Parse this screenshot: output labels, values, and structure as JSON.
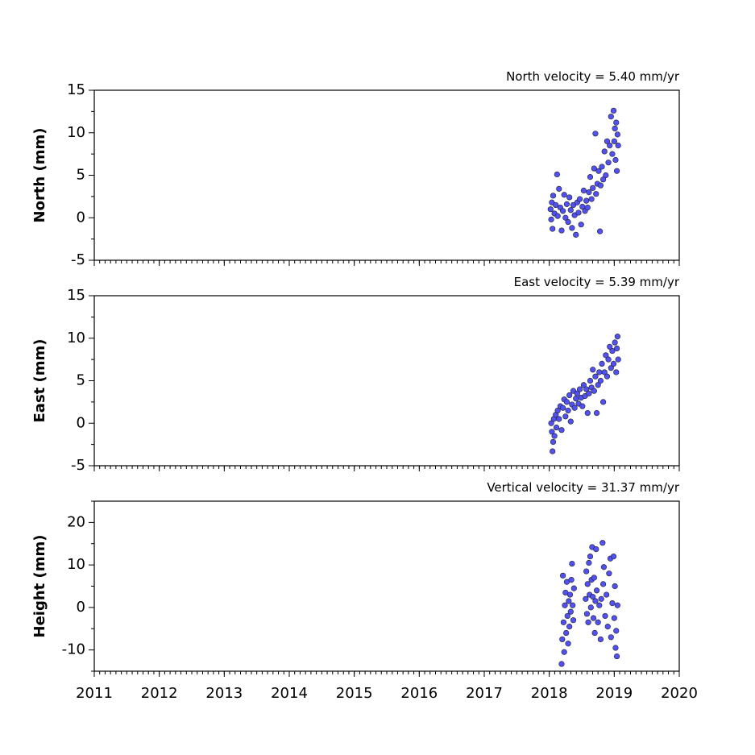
{
  "chart_data": [
    {
      "type": "scatter",
      "title": "North velocity = 5.40 mm/yr",
      "y_label": "North (mm)",
      "color": "#5050f5",
      "xlim": [
        2011,
        2020
      ],
      "xticks": [
        2011,
        2012,
        2013,
        2014,
        2015,
        2016,
        2017,
        2018,
        2019,
        2020
      ],
      "ylim": [
        -5,
        15
      ],
      "yticks": [
        -5,
        0,
        5,
        10,
        15
      ],
      "x": [
        2018.02,
        2018.03,
        2018.04,
        2018.05,
        2018.06,
        2018.08,
        2018.1,
        2018.12,
        2018.13,
        2018.15,
        2018.17,
        2018.19,
        2018.21,
        2018.23,
        2018.25,
        2018.27,
        2018.29,
        2018.31,
        2018.33,
        2018.35,
        2018.37,
        2018.39,
        2018.41,
        2018.43,
        2018.45,
        2018.47,
        2018.49,
        2018.51,
        2018.53,
        2018.55,
        2018.57,
        2018.59,
        2018.61,
        2018.63,
        2018.65,
        2018.67,
        2018.69,
        2018.71,
        2018.72,
        2018.74,
        2018.76,
        2018.78,
        2018.79,
        2018.81,
        2018.83,
        2018.85,
        2018.87,
        2018.89,
        2018.91,
        2018.93,
        2018.95,
        2018.97,
        2018.99,
        2019.0,
        2019.01,
        2019.02,
        2019.03,
        2019.04,
        2019.05,
        2019.06
      ],
      "values": [
        1.0,
        -0.2,
        1.8,
        -1.3,
        2.6,
        0.5,
        1.5,
        5.1,
        0.2,
        3.4,
        1.2,
        -1.5,
        0.8,
        2.7,
        0.0,
        1.6,
        -0.5,
        2.4,
        0.9,
        -1.2,
        1.5,
        0.3,
        -2.0,
        1.8,
        0.6,
        2.2,
        -0.8,
        1.3,
        3.2,
        0.8,
        2.0,
        1.2,
        3.0,
        4.8,
        2.2,
        3.5,
        5.8,
        9.9,
        2.8,
        4.0,
        5.5,
        -1.6,
        3.8,
        6.0,
        4.5,
        7.8,
        5.0,
        9.0,
        6.5,
        8.5,
        11.9,
        7.5,
        12.6,
        9.0,
        10.5,
        6.8,
        11.2,
        5.5,
        9.8,
        8.5
      ]
    },
    {
      "type": "scatter",
      "title": "East velocity = 5.39 mm/yr",
      "y_label": "East (mm)",
      "color": "#5050f5",
      "xlim": [
        2011,
        2020
      ],
      "xticks": [
        2011,
        2012,
        2013,
        2014,
        2015,
        2016,
        2017,
        2018,
        2019,
        2020
      ],
      "ylim": [
        -5,
        15
      ],
      "yticks": [
        -5,
        0,
        5,
        10,
        15
      ],
      "x": [
        2018.03,
        2018.04,
        2018.05,
        2018.06,
        2018.07,
        2018.08,
        2018.1,
        2018.11,
        2018.13,
        2018.15,
        2018.17,
        2018.19,
        2018.21,
        2018.23,
        2018.25,
        2018.27,
        2018.29,
        2018.31,
        2018.33,
        2018.35,
        2018.37,
        2018.39,
        2018.41,
        2018.43,
        2018.45,
        2018.47,
        2018.49,
        2018.51,
        2018.53,
        2018.55,
        2018.57,
        2018.59,
        2018.61,
        2018.63,
        2018.65,
        2018.67,
        2018.69,
        2018.71,
        2018.73,
        2018.75,
        2018.77,
        2018.79,
        2018.81,
        2018.83,
        2018.85,
        2018.87,
        2018.89,
        2018.91,
        2018.93,
        2018.95,
        2018.97,
        2018.99,
        2019.01,
        2019.03,
        2019.04,
        2019.05,
        2019.06
      ],
      "values": [
        0.0,
        -1.0,
        -3.3,
        -2.2,
        0.5,
        -1.5,
        1.0,
        -0.5,
        1.5,
        0.5,
        2.0,
        -0.8,
        1.8,
        2.8,
        0.8,
        2.5,
        1.5,
        3.3,
        0.2,
        2.2,
        3.8,
        1.8,
        2.9,
        3.5,
        2.3,
        4.0,
        3.0,
        2.0,
        4.5,
        3.2,
        4.0,
        1.2,
        3.5,
        5.0,
        4.2,
        6.3,
        3.8,
        5.5,
        1.2,
        4.5,
        6.0,
        5.0,
        7.0,
        2.5,
        6.0,
        8.0,
        5.5,
        7.5,
        9.0,
        6.5,
        8.5,
        7.0,
        9.5,
        6.0,
        8.8,
        10.2,
        7.5
      ]
    },
    {
      "type": "scatter",
      "title": "Vertical velocity = 31.37 mm/yr",
      "y_label": "Height (mm)",
      "color": "#5050f5",
      "xlim": [
        2011,
        2020
      ],
      "xticks": [
        2011,
        2012,
        2013,
        2014,
        2015,
        2016,
        2017,
        2018,
        2019,
        2020
      ],
      "ylim": [
        -15,
        25
      ],
      "yticks": [
        -10,
        0,
        10,
        20
      ],
      "x": [
        2018.19,
        2018.2,
        2018.21,
        2018.22,
        2018.23,
        2018.24,
        2018.25,
        2018.26,
        2018.27,
        2018.28,
        2018.29,
        2018.3,
        2018.31,
        2018.32,
        2018.33,
        2018.34,
        2018.35,
        2018.36,
        2018.37,
        2018.38,
        2018.56,
        2018.57,
        2018.58,
        2018.59,
        2018.6,
        2018.61,
        2018.62,
        2018.63,
        2018.64,
        2018.65,
        2018.66,
        2018.67,
        2018.68,
        2018.69,
        2018.7,
        2018.71,
        2018.72,
        2018.73,
        2018.75,
        2018.77,
        2018.79,
        2018.8,
        2018.82,
        2018.83,
        2018.84,
        2018.86,
        2018.88,
        2018.9,
        2018.92,
        2018.94,
        2018.95,
        2018.97,
        2018.99,
        2019.0,
        2019.01,
        2019.02,
        2019.03,
        2019.04,
        2019.05
      ],
      "values": [
        -13.3,
        -7.5,
        7.5,
        -3.5,
        -10.5,
        0.5,
        3.5,
        -6.0,
        6.0,
        -2.0,
        -8.5,
        1.5,
        -4.5,
        3.0,
        -1.0,
        6.5,
        10.3,
        0.5,
        -3.0,
        4.5,
        2.0,
        8.5,
        -1.5,
        5.5,
        -3.5,
        10.5,
        3.0,
        12.0,
        0.0,
        6.5,
        14.2,
        2.5,
        -2.5,
        7.0,
        -6.0,
        1.5,
        13.7,
        4.0,
        -3.5,
        0.5,
        -7.5,
        2.0,
        15.2,
        5.5,
        9.5,
        -2.0,
        3.0,
        -4.5,
        8.0,
        11.5,
        -7.0,
        1.0,
        12.0,
        -2.5,
        5.0,
        -9.5,
        -5.5,
        -11.5,
        0.5
      ]
    }
  ]
}
